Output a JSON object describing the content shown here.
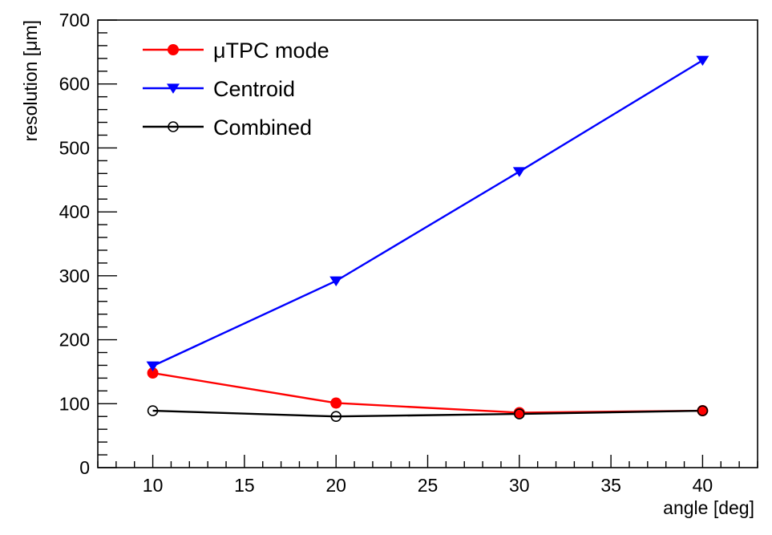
{
  "chart_data": {
    "type": "line",
    "xlabel": "angle [deg]",
    "ylabel": "resolution [μm]",
    "xlim": [
      7,
      43
    ],
    "ylim": [
      0,
      700
    ],
    "x_ticks": [
      10,
      15,
      20,
      25,
      30,
      35,
      40
    ],
    "y_ticks": [
      0,
      100,
      200,
      300,
      400,
      500,
      600,
      700
    ],
    "grid": false,
    "legend_position": "top-left",
    "x": [
      10,
      20,
      30,
      40
    ],
    "series": [
      {
        "name": "μTPC mode",
        "values": [
          148,
          101,
          86,
          89
        ],
        "color": "#ff0000",
        "marker": "filled-circle"
      },
      {
        "name": "Centroid",
        "values": [
          159,
          292,
          463,
          637
        ],
        "color": "#0000ff",
        "marker": "filled-triangle-down"
      },
      {
        "name": "Combined",
        "values": [
          89,
          80,
          84,
          89
        ],
        "color": "#000000",
        "marker": "open-circle"
      }
    ]
  }
}
